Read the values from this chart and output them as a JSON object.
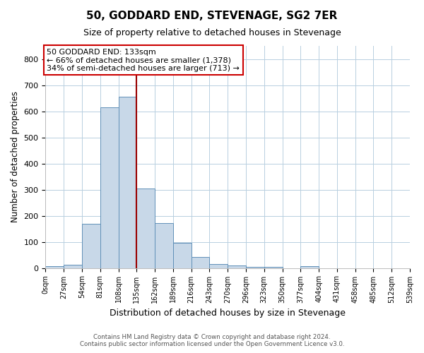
{
  "title": "50, GODDARD END, STEVENAGE, SG2 7ER",
  "subtitle": "Size of property relative to detached houses in Stevenage",
  "xlabel": "Distribution of detached houses by size in Stevenage",
  "ylabel": "Number of detached properties",
  "footer_line1": "Contains HM Land Registry data © Crown copyright and database right 2024.",
  "footer_line2": "Contains public sector information licensed under the Open Government Licence v3.0.",
  "bin_edges": [
    0,
    27,
    54,
    81,
    108,
    135,
    162,
    189,
    216,
    243,
    270,
    297,
    324,
    351,
    378,
    405,
    432,
    459,
    486,
    513,
    540
  ],
  "bin_labels": [
    "0sqm",
    "27sqm",
    "54sqm",
    "81sqm",
    "108sqm",
    "135sqm",
    "162sqm",
    "189sqm",
    "216sqm",
    "243sqm",
    "270sqm",
    "296sqm",
    "323sqm",
    "350sqm",
    "377sqm",
    "404sqm",
    "431sqm",
    "458sqm",
    "485sqm",
    "512sqm",
    "539sqm"
  ],
  "counts": [
    7,
    12,
    170,
    615,
    655,
    305,
    172,
    97,
    42,
    15,
    10,
    5,
    3,
    0,
    6,
    0,
    0,
    0,
    0,
    0
  ],
  "bar_color": "#c8d8e8",
  "bar_edge_color": "#6090b8",
  "vline_x": 135,
  "vline_color": "#990000",
  "annotation_text": "50 GODDARD END: 133sqm\n← 66% of detached houses are smaller (1,378)\n34% of semi-detached houses are larger (713) →",
  "annotation_box_color": "white",
  "annotation_box_edge_color": "#cc0000",
  "ylim": [
    0,
    850
  ],
  "yticks": [
    0,
    100,
    200,
    300,
    400,
    500,
    600,
    700,
    800
  ],
  "background_color": "white",
  "grid_color": "#b8cfe0"
}
